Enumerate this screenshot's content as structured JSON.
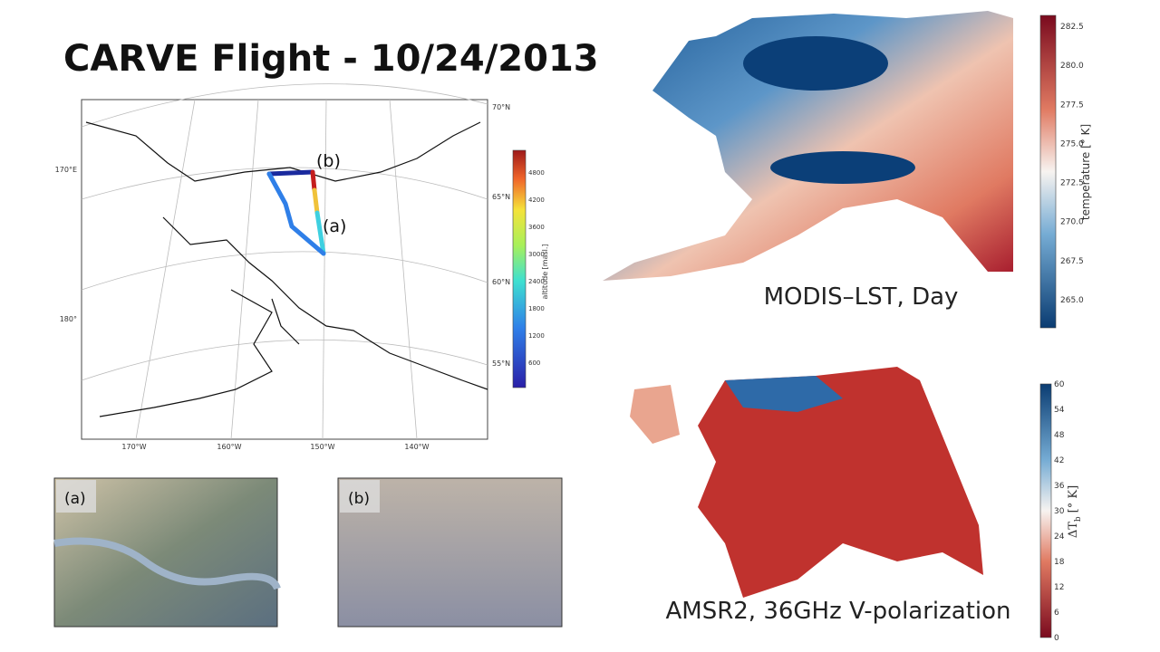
{
  "header": {
    "title": "CARVE Flight - 10/24/2013"
  },
  "flight_map": {
    "lat_labels": [
      "70°N",
      "65°N",
      "60°N",
      "55°N"
    ],
    "left_labels": [
      "170°E",
      "180°"
    ],
    "lon_labels": [
      "170°W",
      "160°W",
      "150°W",
      "140°W"
    ],
    "markers": [
      "(b)",
      "(a)"
    ],
    "colorbar": {
      "label": "altitude [masl.]",
      "ticks": [
        "4800",
        "4200",
        "3600",
        "3000",
        "2400",
        "1800",
        "1200",
        "600"
      ]
    }
  },
  "photos": [
    {
      "label": "(a)"
    },
    {
      "label": "(b)"
    }
  ],
  "modis": {
    "caption": "MODIS–LST, Day",
    "colorbar": {
      "label": "temperature [° K]",
      "ticks": [
        "282.5",
        "280.0",
        "277.5",
        "275.0",
        "272.5",
        "270.0",
        "267.5",
        "265.0"
      ]
    }
  },
  "amsr2": {
    "caption": "AMSR2, 36GHz V-polarization",
    "colorbar": {
      "symbol": "ΔT",
      "subscript": "b",
      "unit": "[° K]",
      "ticks": [
        "60",
        "54",
        "48",
        "42",
        "36",
        "30",
        "24",
        "18",
        "12",
        "6",
        "0"
      ]
    }
  }
}
